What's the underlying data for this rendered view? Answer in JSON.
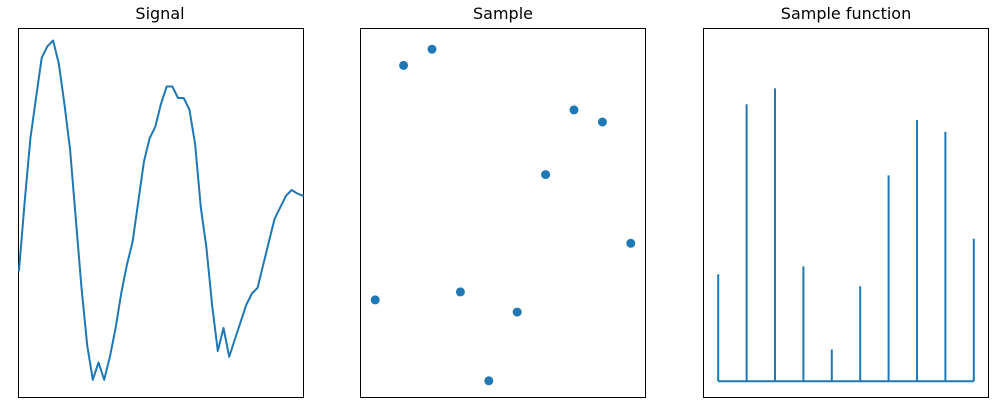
{
  "colors": {
    "series": "#1f77b4",
    "axes": "#000000",
    "background": "#ffffff"
  },
  "chart_data": [
    {
      "type": "line",
      "title": "Signal",
      "xlabel": "",
      "ylabel": "",
      "grid": false,
      "ticks_visible": false,
      "xlim": [
        0,
        100
      ],
      "ylim": [
        -1.65,
        1.55
      ],
      "x": [
        0,
        2,
        4,
        6,
        8,
        10,
        12,
        14,
        16,
        18,
        20,
        22,
        24,
        26,
        28,
        30,
        32,
        34,
        36,
        38,
        40,
        42,
        44,
        46,
        48,
        50,
        52,
        54,
        56,
        58,
        60,
        62,
        64,
        66,
        68,
        70,
        72,
        74,
        76,
        78,
        80,
        82,
        84,
        86,
        88,
        90,
        92,
        94,
        96,
        98,
        100
      ],
      "values": [
        -0.55,
        0.05,
        0.6,
        0.95,
        1.3,
        1.4,
        1.45,
        1.25,
        0.9,
        0.5,
        -0.1,
        -0.7,
        -1.2,
        -1.5,
        -1.35,
        -1.5,
        -1.3,
        -1.05,
        -0.75,
        -0.5,
        -0.3,
        0.05,
        0.4,
        0.6,
        0.7,
        0.9,
        1.05,
        1.05,
        0.95,
        0.95,
        0.85,
        0.55,
        0.0,
        -0.35,
        -0.85,
        -1.25,
        -1.05,
        -1.3,
        -1.15,
        -1.0,
        -0.85,
        -0.75,
        -0.7,
        -0.5,
        -0.3,
        -0.1,
        0.0,
        0.1,
        0.15,
        0.12,
        0.1
      ]
    },
    {
      "type": "scatter",
      "title": "Sample",
      "xlabel": "",
      "ylabel": "",
      "grid": false,
      "ticks_visible": false,
      "xlim": [
        -0.5,
        9.5
      ],
      "ylim": [
        -0.2,
        8.9
      ],
      "points": [
        {
          "x": 0,
          "y": 2.2
        },
        {
          "x": 1,
          "y": 8.0
        },
        {
          "x": 2,
          "y": 8.4
        },
        {
          "x": 3,
          "y": 2.4
        },
        {
          "x": 4,
          "y": 0.2
        },
        {
          "x": 5,
          "y": 1.9
        },
        {
          "x": 6,
          "y": 5.3
        },
        {
          "x": 7,
          "y": 6.9
        },
        {
          "x": 8,
          "y": 6.6
        },
        {
          "x": 9,
          "y": 3.6
        }
      ]
    },
    {
      "type": "bar",
      "subtype": "stem",
      "title": "Sample function",
      "xlabel": "",
      "ylabel": "",
      "grid": false,
      "ticks_visible": false,
      "xlim": [
        -0.5,
        9.5
      ],
      "ylim": [
        -0.4,
        8.9
      ],
      "baseline": 0,
      "x": [
        0,
        1,
        2,
        3,
        4,
        5,
        6,
        7,
        8,
        9
      ],
      "values": [
        2.7,
        7.0,
        7.4,
        2.9,
        0.8,
        2.4,
        5.2,
        6.6,
        6.3,
        3.6
      ]
    }
  ]
}
